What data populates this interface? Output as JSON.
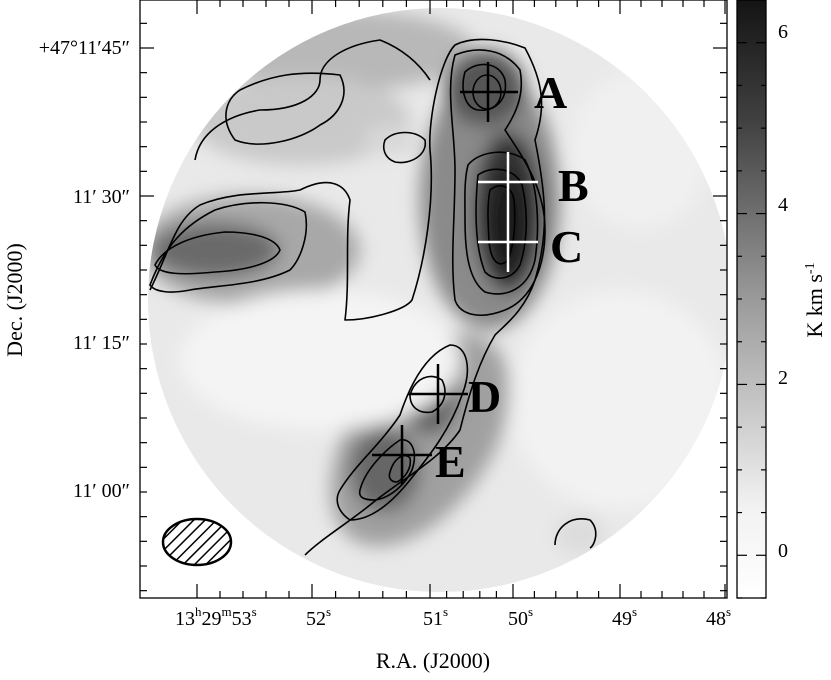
{
  "chart_data": {
    "type": "heatmap",
    "title": "",
    "xlabel": "R.A. (J2000)",
    "ylabel": "Dec. (J2000)",
    "colorbar": {
      "label": "K km s",
      "label_sup": "-1",
      "ticks": [
        "6",
        "4",
        "2",
        "0"
      ],
      "tick_values": [
        6,
        4,
        2,
        0
      ],
      "range": [
        -0.5,
        6.5
      ],
      "colormap": "gray-reversed (white = low, black = high)"
    },
    "x_ticks": [
      {
        "h": "13",
        "hsup": "h",
        "m": "29",
        "msup": "m",
        "s": "53",
        "ssup": "s",
        "value_s": 53
      },
      {
        "s": "52",
        "ssup": "s",
        "value_s": 52
      },
      {
        "s": "51",
        "ssup": "s",
        "value_s": 51
      },
      {
        "s": "50",
        "ssup": "s",
        "value_s": 50
      },
      {
        "s": "49",
        "ssup": "s",
        "value_s": 49
      },
      {
        "s": "48",
        "ssup": "s",
        "value_s": 48
      }
    ],
    "y_ticks": [
      {
        "label": "+47°11′45″",
        "value_arcsec": 45
      },
      {
        "label": "11′ 30″",
        "value_arcsec": 30
      },
      {
        "label": "11′ 15″",
        "value_arcsec": 15
      },
      {
        "label": "11′ 00″",
        "value_arcsec": 0
      }
    ],
    "sources": [
      {
        "name": "A",
        "ra_s": 50.3,
        "dec_arcsec": 43.5,
        "cross_color": "#000000"
      },
      {
        "name": "B",
        "ra_s": 50.1,
        "dec_arcsec": 32.0,
        "cross_color": "#ffffff"
      },
      {
        "name": "C",
        "ra_s": 50.1,
        "dec_arcsec": 26.0,
        "cross_color": "#ffffff"
      },
      {
        "name": "D",
        "ra_s": 50.85,
        "dec_arcsec": 10.0,
        "cross_color": "#000000"
      },
      {
        "name": "E",
        "ra_s": 51.2,
        "dec_arcsec": 3.5,
        "cross_color": "#000000"
      }
    ],
    "beam": {
      "shape": "hatched-ellipse",
      "position": "bottom-left"
    },
    "emission_peaks": [
      {
        "ra_s": 50.3,
        "dec_arcsec": 43,
        "value": 4.3
      },
      {
        "ra_s": 50.1,
        "dec_arcsec": 29,
        "value": 6.2
      },
      {
        "ra_s": 50.85,
        "dec_arcsec": 10,
        "value": 3.2
      },
      {
        "ra_s": 51.2,
        "dec_arcsec": 3,
        "value": 3.3
      },
      {
        "ra_s": 53.1,
        "dec_arcsec": 24,
        "value": 3.0
      }
    ],
    "grid": false,
    "legend": "none"
  },
  "colors": {
    "background": "#ffffff",
    "axes": "#000000",
    "contours": "#000000",
    "cross_dark": "#000000",
    "cross_light": "#ffffff"
  }
}
